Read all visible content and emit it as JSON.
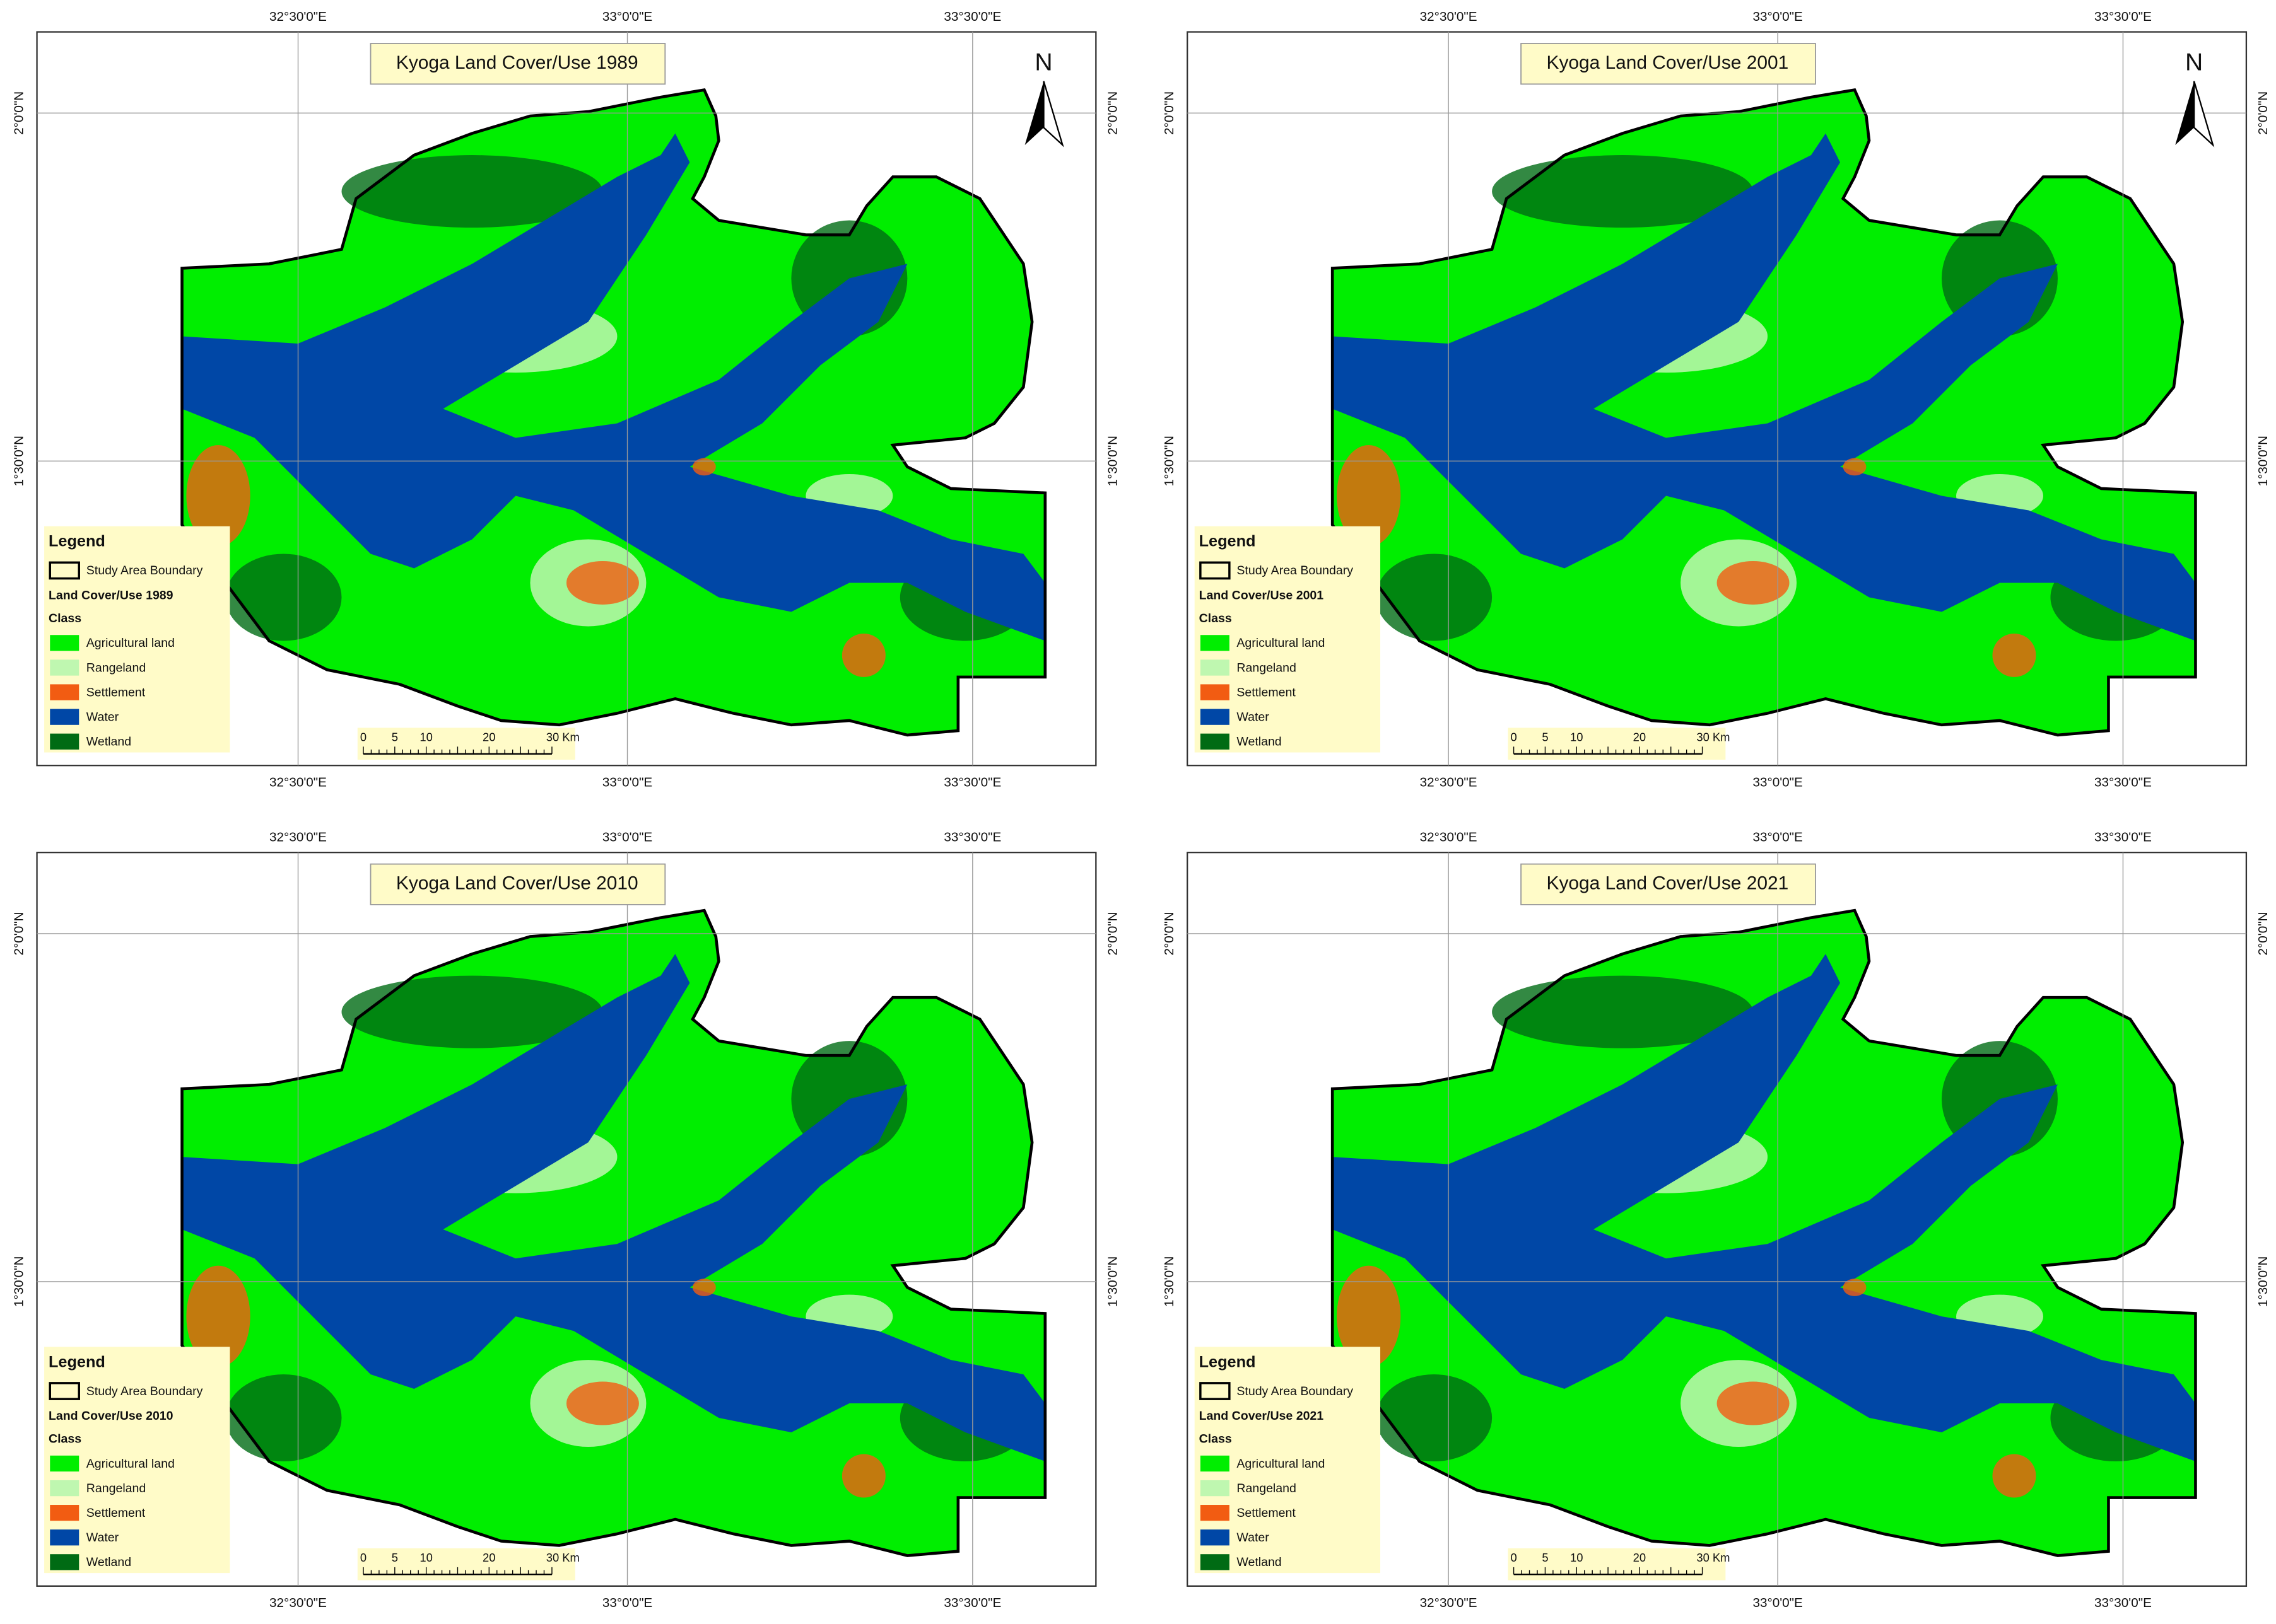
{
  "maps": [
    {
      "title": "Kyoga Land Cover/Use 1989",
      "north": "N",
      "axes": {
        "top": [
          "32°30'0\"E",
          "33°0'0\"E",
          "33°30'0\"E"
        ],
        "bottom": [
          "32°30'0\"E",
          "33°0'0\"E",
          "33°30'0\"E"
        ],
        "left": [
          "2°0'0\"N",
          "1°30'0\"N"
        ],
        "right": [
          "2°0'0\"N",
          "1°30'0\"N"
        ]
      },
      "legend": {
        "title": "Legend",
        "boundary": "Study Area Boundary",
        "subtitle": "Land Cover/Use 1989",
        "class_title": "Class",
        "classes": [
          {
            "label": "Agricultural land",
            "color": "#00ee00"
          },
          {
            "label": "Rangeland",
            "color": "#bff7b0"
          },
          {
            "label": "Settlement",
            "color": "#f25c12"
          },
          {
            "label": "Water",
            "color": "#0047a6"
          },
          {
            "label": "Wetland",
            "color": "#006b14"
          }
        ]
      },
      "scale": [
        "0",
        "5",
        "10",
        "20",
        "30 Km"
      ]
    },
    {
      "title": "Kyoga Land Cover/Use 2001",
      "north": "N",
      "axes": {
        "top": [
          "32°30'0\"E",
          "33°0'0\"E",
          "33°30'0\"E"
        ],
        "bottom": [
          "32°30'0\"E",
          "33°0'0\"E",
          "33°30'0\"E"
        ],
        "left": [
          "2°0'0\"N",
          "1°30'0\"N"
        ],
        "right": [
          "2°0'0\"N",
          "1°30'0\"N"
        ]
      },
      "legend": {
        "title": "Legend",
        "boundary": "Study Area Boundary",
        "subtitle": "Land Cover/Use 2001",
        "class_title": "Class",
        "classes": [
          {
            "label": "Agricultural land",
            "color": "#00ee00"
          },
          {
            "label": "Rangeland",
            "color": "#bff7b0"
          },
          {
            "label": "Settlement",
            "color": "#f25c12"
          },
          {
            "label": "Water",
            "color": "#0047a6"
          },
          {
            "label": "Wetland",
            "color": "#006b14"
          }
        ]
      },
      "scale": [
        "0",
        "5",
        "10",
        "20",
        "30 Km"
      ]
    },
    {
      "title": "Kyoga Land Cover/Use 2010",
      "axes": {
        "top": [
          "32°30'0\"E",
          "33°0'0\"E",
          "33°30'0\"E"
        ],
        "bottom": [
          "32°30'0\"E",
          "33°0'0\"E",
          "33°30'0\"E"
        ],
        "left": [
          "2°0'0\"N",
          "1°30'0\"N"
        ],
        "right": [
          "2°0'0\"N",
          "1°30'0\"N"
        ]
      },
      "legend": {
        "title": "Legend",
        "boundary": "Study Area Boundary",
        "subtitle": "Land Cover/Use 2010",
        "class_title": "Class",
        "classes": [
          {
            "label": "Agricultural land",
            "color": "#00ee00"
          },
          {
            "label": "Rangeland",
            "color": "#bff7b0"
          },
          {
            "label": "Settlement",
            "color": "#f25c12"
          },
          {
            "label": "Water",
            "color": "#0047a6"
          },
          {
            "label": "Wetland",
            "color": "#006b14"
          }
        ]
      },
      "scale": [
        "0",
        "5",
        "10",
        "20",
        "30 Km"
      ]
    },
    {
      "title": "Kyoga Land Cover/Use 2021",
      "axes": {
        "top": [
          "32°30'0\"E",
          "33°0'0\"E",
          "33°30'0\"E"
        ],
        "bottom": [
          "32°30'0\"E",
          "33°0'0\"E",
          "33°30'0\"E"
        ],
        "left": [
          "2°0'0\"N",
          "1°30'0\"N"
        ],
        "right": [
          "2°0'0\"N",
          "1°30'0\"N"
        ]
      },
      "legend": {
        "title": "Legend",
        "boundary": "Study Area Boundary",
        "subtitle": "Land Cover/Use 2021",
        "class_title": "Class",
        "classes": [
          {
            "label": "Agricultural land",
            "color": "#00ee00"
          },
          {
            "label": "Rangeland",
            "color": "#bff7b0"
          },
          {
            "label": "Settlement",
            "color": "#f25c12"
          },
          {
            "label": "Water",
            "color": "#0047a6"
          },
          {
            "label": "Wetland",
            "color": "#006b14"
          }
        ]
      },
      "scale": [
        "0",
        "5",
        "10",
        "20",
        "30 Km"
      ]
    }
  ]
}
